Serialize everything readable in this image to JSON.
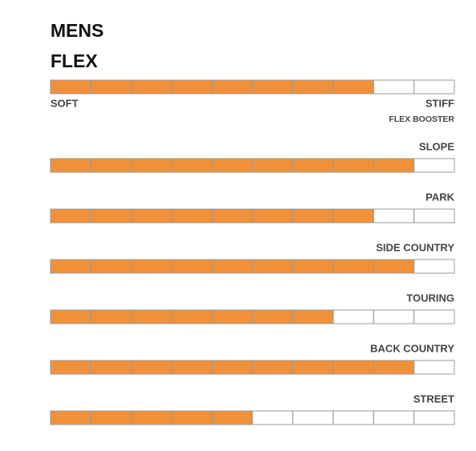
{
  "title": "MENS",
  "subtitle": "FLEX",
  "scale_max": 10,
  "fill_color": "#f0913a",
  "flex": {
    "value": 8,
    "low_label": "SOFT",
    "high_label": "STIFF"
  },
  "booster_heading": "FLEX BOOSTER",
  "ratings": [
    {
      "label": "SLOPE",
      "value": 9
    },
    {
      "label": "PARK",
      "value": 8
    },
    {
      "label": "SIDE COUNTRY",
      "value": 9
    },
    {
      "label": "TOURING",
      "value": 7
    },
    {
      "label": "BACK COUNTRY",
      "value": 9
    },
    {
      "label": "STREET",
      "value": 5
    }
  ]
}
